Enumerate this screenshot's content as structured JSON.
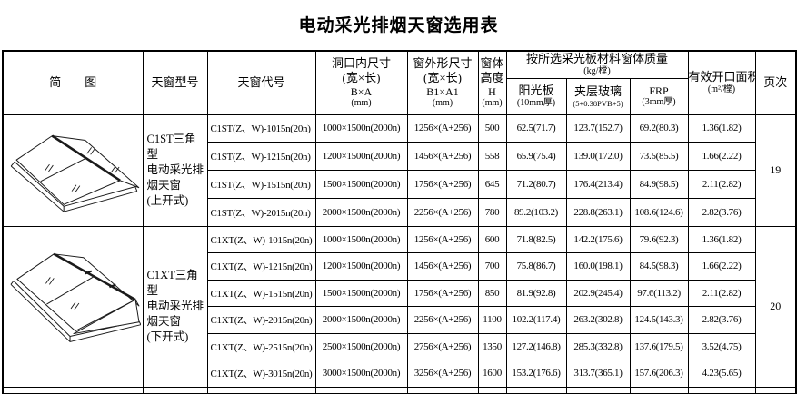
{
  "title": "电动采光排烟天窗选用表",
  "table": {
    "headers": {
      "sketch": "简　　图",
      "model": "天窗型号",
      "code": "天窗代号",
      "opening_lines": [
        "洞口内尺寸",
        "(宽×长)",
        "B×A",
        "(mm)"
      ],
      "outer_lines": [
        "窗外形尺寸",
        "(宽×长)",
        "B1×A1",
        "(mm)"
      ],
      "height_lines": [
        "窗体",
        "高度",
        "H",
        "(mm)"
      ],
      "mass_group_lines": [
        "按所选采光板材料窗体质量",
        "(kg/樘)"
      ],
      "mass_cols": [
        {
          "name": "阳光板",
          "spec": "(10mm厚)"
        },
        {
          "name": "夹层玻璃",
          "spec": "(5+0.38PVB+5)"
        },
        {
          "name": "FRP",
          "spec": "(3mm厚)"
        }
      ],
      "area_lines": [
        "有效开口面积",
        "(m²/樘)"
      ],
      "page": "页次"
    },
    "groups": [
      {
        "model_lines": [
          "C1ST三角型",
          "电动采光排",
          "烟天窗",
          "(上开式)"
        ],
        "page": "19",
        "rows": [
          [
            "C1ST(Z、W)-1015n(20n)",
            "1000×1500n(2000n)",
            "1256×(A+256)",
            "500",
            "62.5(71.7)",
            "123.7(152.7)",
            "69.2(80.3)",
            "1.36(1.82)"
          ],
          [
            "C1ST(Z、W)-1215n(20n)",
            "1200×1500n(2000n)",
            "1456×(A+256)",
            "558",
            "65.9(75.4)",
            "139.0(172.0)",
            "73.5(85.5)",
            "1.66(2.22)"
          ],
          [
            "C1ST(Z、W)-1515n(20n)",
            "1500×1500n(2000n)",
            "1756×(A+256)",
            "645",
            "71.2(80.7)",
            "176.4(213.4)",
            "84.9(98.5)",
            "2.11(2.82)"
          ],
          [
            "C1ST(Z、W)-2015n(20n)",
            "2000×1500n(2000n)",
            "2256×(A+256)",
            "780",
            "89.2(103.2)",
            "228.8(263.1)",
            "108.6(124.6)",
            "2.82(3.76)"
          ]
        ]
      },
      {
        "model_lines": [
          "C1XT三角型",
          "电动采光排",
          "烟天窗",
          "(下开式)"
        ],
        "page": "20",
        "rows": [
          [
            "C1XT(Z、W)-1015n(20n)",
            "1000×1500n(2000n)",
            "1256×(A+256)",
            "600",
            "71.8(82.5)",
            "142.2(175.6)",
            "79.6(92.3)",
            "1.36(1.82)"
          ],
          [
            "C1XT(Z、W)-1215n(20n)",
            "1200×1500n(2000n)",
            "1456×(A+256)",
            "700",
            "75.8(86.7)",
            "160.0(198.1)",
            "84.5(98.3)",
            "1.66(2.22)"
          ],
          [
            "C1XT(Z、W)-1515n(20n)",
            "1500×1500n(2000n)",
            "1756×(A+256)",
            "850",
            "81.9(92.8)",
            "202.9(245.4)",
            "97.6(113.2)",
            "2.11(2.82)"
          ],
          [
            "C1XT(Z、W)-2015n(20n)",
            "2000×1500n(2000n)",
            "2256×(A+256)",
            "1100",
            "102.2(117.4)",
            "263.2(302.8)",
            "124.5(143.3)",
            "2.82(3.76)"
          ],
          [
            "C1XT(Z、W)-2515n(20n)",
            "2500×1500n(2000n)",
            "2756×(A+256)",
            "1350",
            "127.2(146.8)",
            "285.3(332.8)",
            "137.6(179.5)",
            "3.52(4.75)"
          ],
          [
            "C1XT(Z、W)-3015n(20n)",
            "3000×1500n(2000n)",
            "3256×(A+256)",
            "1600",
            "153.2(176.6)",
            "313.7(365.1)",
            "157.6(206.3)",
            "4.23(5.65)"
          ]
        ]
      }
    ]
  }
}
